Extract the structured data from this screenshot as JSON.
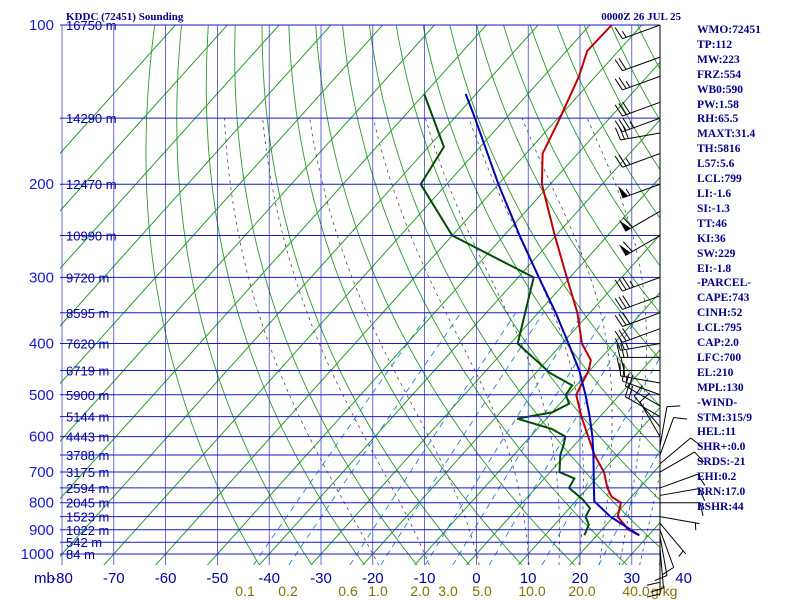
{
  "header": {
    "station": "KDDC (72451) Sounding",
    "time": "0000Z 26 JUL 25"
  },
  "indices": [
    "WMO:72451",
    "TP:112",
    "MW:223",
    "FRZ:554",
    "WB0:590",
    "PW:1.58",
    "RH:65.5",
    "MAXT:31.4",
    "TH:5816",
    "L57:5.6",
    "LCL:799",
    "LI:-1.6",
    "SI:-1.3",
    "TT:46",
    "KI:36",
    "SW:229",
    "EI:-1.8",
    "-PARCEL-",
    "CAPE:743",
    "CINH:52",
    "LCL:795",
    "CAP:2.0",
    "LFC:700",
    "EL:210",
    "MPL:130",
    "-WIND-",
    "STM:315/9",
    "HEL:11",
    "SHR+:0.0",
    "SRDS:-21",
    "EHI:0.2",
    "BRN:17.0",
    "BSHR:44"
  ],
  "chart_data": {
    "type": "line",
    "title": "KDDC (72451) Sounding",
    "xlabel": "",
    "ylabel": "mb",
    "x_unit": "°C",
    "y_unit": "mb",
    "xlim": [
      -80,
      30
    ],
    "ylim": [
      1000,
      100
    ],
    "y_scale": "log",
    "grid": true,
    "pressure_ticks": [
      "100",
      "200",
      "300",
      "400",
      "500",
      "600",
      "700",
      "800",
      "900",
      "1000"
    ],
    "temperature_ticks": [
      "-80",
      "-70",
      "-60",
      "-50",
      "-40",
      "-30",
      "-20",
      "-10",
      "0",
      "10",
      "20",
      "30",
      "40"
    ],
    "height_labels": [
      {
        "p": 100,
        "label": "16750 m"
      },
      {
        "p": 150,
        "label": "14290 m"
      },
      {
        "p": 200,
        "label": "12470 m"
      },
      {
        "p": 250,
        "label": "10990 m"
      },
      {
        "p": 300,
        "label": "9720 m"
      },
      {
        "p": 350,
        "label": "8595 m"
      },
      {
        "p": 400,
        "label": "7620 m"
      },
      {
        "p": 450,
        "label": "6719 m"
      },
      {
        "p": 500,
        "label": "5900 m"
      },
      {
        "p": 550,
        "label": "5144 m"
      },
      {
        "p": 600,
        "label": "4443 m"
      },
      {
        "p": 650,
        "label": "3788 m"
      },
      {
        "p": 700,
        "label": "3175 m"
      },
      {
        "p": 750,
        "label": "2594 m"
      },
      {
        "p": 800,
        "label": "2045 m"
      },
      {
        "p": 850,
        "label": "1523 m"
      },
      {
        "p": 900,
        "label": "1022 m"
      },
      {
        "p": 950,
        "label": "542 m"
      },
      {
        "p": 1000,
        "label": "84 m"
      }
    ],
    "mixing_ratio_labels": [
      {
        "w": 0.1,
        "label": "0.1"
      },
      {
        "w": 0.2,
        "label": "0.2"
      },
      {
        "w": 0.6,
        "label": "0.6"
      },
      {
        "w": 1.0,
        "label": "1.0"
      },
      {
        "w": 2.0,
        "label": "2.0"
      },
      {
        "w": 3.0,
        "label": "3.0"
      },
      {
        "w": 5.0,
        "label": "5.0"
      },
      {
        "w": 10.0,
        "label": "10.0"
      },
      {
        "w": 20.0,
        "label": "20.0"
      },
      {
        "w": 40.0,
        "label": "40.0"
      }
    ],
    "mixing_ratio_unit": "g/kg",
    "series": [
      {
        "key": "temperature",
        "color": "#c00000",
        "points": [
          {
            "p": 922,
            "t": 28.2
          },
          {
            "p": 900,
            "t": 25.2
          },
          {
            "p": 850,
            "t": 20.8
          },
          {
            "p": 800,
            "t": 19.0
          },
          {
            "p": 780,
            "t": 16.2
          },
          {
            "p": 750,
            "t": 13.8
          },
          {
            "p": 700,
            "t": 10.4
          },
          {
            "p": 650,
            "t": 5.6
          },
          {
            "p": 600,
            "t": 1.2
          },
          {
            "p": 550,
            "t": -3.6
          },
          {
            "p": 500,
            "t": -8.4
          },
          {
            "p": 450,
            "t": -10.2
          },
          {
            "p": 430,
            "t": -11.6
          },
          {
            "p": 400,
            "t": -16.2
          },
          {
            "p": 350,
            "t": -22.4
          },
          {
            "p": 300,
            "t": -30.6
          },
          {
            "p": 250,
            "t": -40.2
          },
          {
            "p": 200,
            "t": -51.6
          },
          {
            "p": 175,
            "t": -56.8
          },
          {
            "p": 150,
            "t": -59.6
          },
          {
            "p": 125,
            "t": -63.2
          },
          {
            "p": 112,
            "t": -66.0
          },
          {
            "p": 100,
            "t": -65.8
          }
        ]
      },
      {
        "key": "dewpoint",
        "color": "#004d00",
        "points": [
          {
            "p": 922,
            "t": 17.6
          },
          {
            "p": 880,
            "t": 16.6
          },
          {
            "p": 850,
            "t": 14.6
          },
          {
            "p": 820,
            "t": 14.0
          },
          {
            "p": 790,
            "t": 11.2
          },
          {
            "p": 750,
            "t": 6.4
          },
          {
            "p": 720,
            "t": 5.8
          },
          {
            "p": 700,
            "t": 1.8
          },
          {
            "p": 650,
            "t": -1.0
          },
          {
            "p": 620,
            "t": -2.2
          },
          {
            "p": 600,
            "t": -3.2
          },
          {
            "p": 580,
            "t": -7.2
          },
          {
            "p": 555,
            "t": -15.6
          },
          {
            "p": 540,
            "t": -10.0
          },
          {
            "p": 520,
            "t": -8.2
          },
          {
            "p": 500,
            "t": -10.4
          },
          {
            "p": 480,
            "t": -10.8
          },
          {
            "p": 455,
            "t": -17.2
          },
          {
            "p": 400,
            "t": -28.6
          },
          {
            "p": 300,
            "t": -37.0
          },
          {
            "p": 250,
            "t": -60.0
          },
          {
            "p": 200,
            "t": -75.0
          },
          {
            "p": 170,
            "t": -77.0
          },
          {
            "p": 135,
            "t": -90.0
          }
        ]
      },
      {
        "key": "parcel",
        "color": "#0000b4",
        "points": [
          {
            "p": 922,
            "t": 28.2
          },
          {
            "p": 850,
            "t": 19.4
          },
          {
            "p": 795,
            "t": 13.6
          },
          {
            "p": 750,
            "t": 11.2
          },
          {
            "p": 700,
            "t": 8.4
          },
          {
            "p": 650,
            "t": 5.4
          },
          {
            "p": 600,
            "t": 2.0
          },
          {
            "p": 550,
            "t": -2.0
          },
          {
            "p": 500,
            "t": -6.6
          },
          {
            "p": 450,
            "t": -12.0
          },
          {
            "p": 400,
            "t": -18.8
          },
          {
            "p": 350,
            "t": -26.6
          },
          {
            "p": 300,
            "t": -36.0
          },
          {
            "p": 250,
            "t": -47.0
          },
          {
            "p": 200,
            "t": -60.0
          },
          {
            "p": 150,
            "t": -76.0
          },
          {
            "p": 135,
            "t": -82.0
          }
        ]
      }
    ]
  },
  "colors": {
    "isobar": "#1a1acd",
    "isotherm": "#2a9a2a",
    "dry_adiabat": "#2a9a2a",
    "moist_adiabat": "#4a4a4a",
    "mixing_ratio": "#2080d0",
    "temperature": "#c00000",
    "dewpoint": "#004d00",
    "parcel": "#0000b4",
    "wind_barb": "#000000"
  },
  "wind_barbs": [
    {
      "p": 1000,
      "dir": 180,
      "spd": 10
    },
    {
      "p": 975,
      "dir": 175,
      "spd": 10
    },
    {
      "p": 950,
      "dir": 180,
      "spd": 10
    },
    {
      "p": 925,
      "dir": 170,
      "spd": 10
    },
    {
      "p": 900,
      "dir": 160,
      "spd": 10
    },
    {
      "p": 875,
      "dir": 140,
      "spd": 5
    },
    {
      "p": 850,
      "dir": 100,
      "spd": 5
    },
    {
      "p": 800,
      "dir": 90,
      "spd": 10
    },
    {
      "p": 775,
      "dir": 80,
      "spd": 10
    },
    {
      "p": 750,
      "dir": 70,
      "spd": 10
    },
    {
      "p": 700,
      "dir": 60,
      "spd": 10
    },
    {
      "p": 675,
      "dir": 50,
      "spd": 10
    },
    {
      "p": 650,
      "dir": 20,
      "spd": 10
    },
    {
      "p": 625,
      "dir": 10,
      "spd": 10
    },
    {
      "p": 600,
      "dir": 330,
      "spd": 10
    },
    {
      "p": 575,
      "dir": 320,
      "spd": 10
    },
    {
      "p": 550,
      "dir": 300,
      "spd": 20
    },
    {
      "p": 525,
      "dir": 300,
      "spd": 20
    },
    {
      "p": 500,
      "dir": 290,
      "spd": 15
    },
    {
      "p": 475,
      "dir": 280,
      "spd": 20
    },
    {
      "p": 450,
      "dir": 270,
      "spd": 20
    },
    {
      "p": 425,
      "dir": 270,
      "spd": 25
    },
    {
      "p": 400,
      "dir": 260,
      "spd": 25
    },
    {
      "p": 375,
      "dir": 250,
      "spd": 30
    },
    {
      "p": 350,
      "dir": 250,
      "spd": 30
    },
    {
      "p": 325,
      "dir": 250,
      "spd": 30
    },
    {
      "p": 300,
      "dir": 250,
      "spd": 35
    },
    {
      "p": 250,
      "dir": 240,
      "spd": 60
    },
    {
      "p": 225,
      "dir": 240,
      "spd": 60
    },
    {
      "p": 200,
      "dir": 250,
      "spd": 55
    },
    {
      "p": 175,
      "dir": 250,
      "spd": 25
    },
    {
      "p": 160,
      "dir": 260,
      "spd": 30
    },
    {
      "p": 150,
      "dir": 250,
      "spd": 35
    },
    {
      "p": 140,
      "dir": 250,
      "spd": 30
    },
    {
      "p": 125,
      "dir": 250,
      "spd": 25
    },
    {
      "p": 115,
      "dir": 250,
      "spd": 20
    },
    {
      "p": 100,
      "dir": 250,
      "spd": 15
    }
  ]
}
